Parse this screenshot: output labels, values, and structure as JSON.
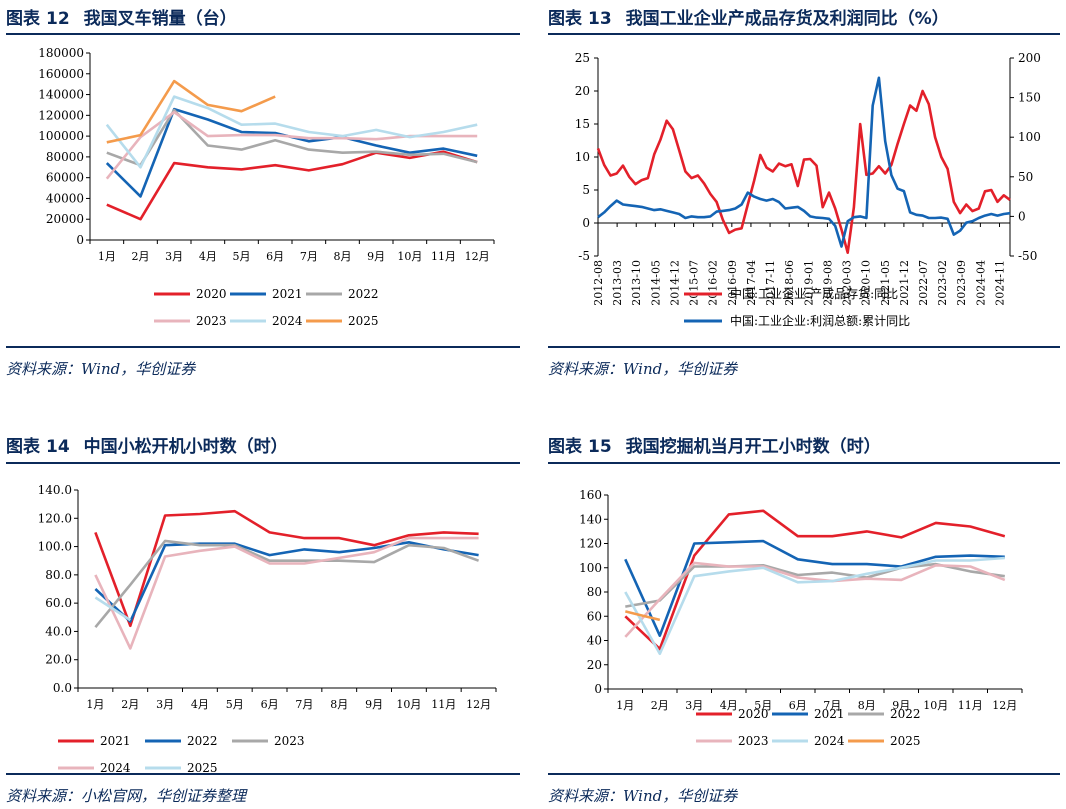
{
  "panels": [
    {
      "title_prefix": "图表",
      "title_number": "12",
      "title": "我国叉车销量（台）",
      "source": "资料来源：Wind，华创证券"
    },
    {
      "title_prefix": "图表",
      "title_number": "13",
      "title": "我国工业企业产成品存货及利润同比（%）",
      "source": "资料来源：Wind，华创证券"
    },
    {
      "title_prefix": "图表",
      "title_number": "14",
      "title": "中国小松开机小时数（时）",
      "source": "资料来源：小松官网，华创证券整理"
    },
    {
      "title_prefix": "图表",
      "title_number": "15",
      "title": "我国挖掘机当月开工小时数（时）",
      "source": "资料来源：Wind，华创证券"
    }
  ],
  "chart_data": [
    {
      "type": "line",
      "categories": [
        "1月",
        "2月",
        "3月",
        "4月",
        "5月",
        "6月",
        "7月",
        "8月",
        "9月",
        "10月",
        "11月",
        "12月"
      ],
      "ylim": [
        0,
        180000
      ],
      "yticks": [
        "0",
        "20000",
        "40000",
        "60000",
        "80000",
        "100000",
        "120000",
        "140000",
        "160000",
        "180000"
      ],
      "series": [
        {
          "name": "2020",
          "color": "#e3202a",
          "values": [
            34000,
            20000,
            74000,
            70000,
            68000,
            72000,
            67000,
            73000,
            84000,
            79000,
            85000,
            75000
          ]
        },
        {
          "name": "2021",
          "color": "#1464b4",
          "values": [
            74000,
            42000,
            126000,
            116000,
            104000,
            103000,
            95000,
            99000,
            91000,
            84000,
            88000,
            81000
          ]
        },
        {
          "name": "2022",
          "color": "#a8a8a8",
          "values": [
            84000,
            72000,
            125000,
            91000,
            87000,
            96000,
            87000,
            84000,
            85000,
            82000,
            83000,
            75000
          ]
        },
        {
          "name": "2023",
          "color": "#e8b4bc",
          "values": [
            59000,
            99000,
            123000,
            100000,
            101000,
            101000,
            98000,
            98000,
            97000,
            100000,
            100000,
            100000
          ]
        },
        {
          "name": "2024",
          "color": "#b6dcec",
          "values": [
            111000,
            70000,
            138000,
            127000,
            111000,
            112000,
            104000,
            100000,
            106000,
            99000,
            104000,
            111000
          ]
        },
        {
          "name": "2025",
          "color": "#f49b4c",
          "values": [
            94000,
            101000,
            153000,
            130000,
            124000,
            138000,
            null,
            null,
            null,
            null,
            null,
            null
          ]
        }
      ]
    },
    {
      "type": "line",
      "xticks": [
        "2012-08",
        "2013-03",
        "2013-10",
        "2014-05",
        "2014-12",
        "2015-07",
        "2016-02",
        "2016-09",
        "2017-04",
        "2017-11",
        "2018-06",
        "2019-01",
        "2019-08",
        "2020-03",
        "2020-10",
        "2021-05",
        "2021-12",
        "2022-07",
        "2023-02",
        "2023-09",
        "2024-04",
        "2024-11"
      ],
      "ylim_left": [
        -5,
        25
      ],
      "yticks_left": [
        "-5",
        "0",
        "5",
        "10",
        "15",
        "20",
        "25"
      ],
      "ylim_right": [
        -50,
        200
      ],
      "yticks_right": [
        "-50",
        "0",
        "50",
        "100",
        "150",
        "200"
      ],
      "series": [
        {
          "name": "中国:工业企业:产成品存货:同比",
          "axis": "left",
          "color": "#e3202a",
          "values": [
            11.3,
            8.8,
            7.2,
            7.5,
            8.7,
            7.0,
            5.9,
            6.5,
            6.8,
            10.4,
            12.6,
            15.5,
            14.2,
            11.0,
            7.8,
            6.8,
            7.2,
            6.0,
            4.4,
            3.2,
            0.5,
            -1.5,
            -1.0,
            -0.8,
            2.8,
            6.4,
            10.3,
            8.4,
            7.8,
            9.0,
            8.6,
            8.9,
            5.6,
            9.6,
            9.7,
            8.7,
            2.4,
            4.6,
            2.2,
            -1.0,
            -4.5,
            2.4,
            15.0,
            7.3,
            7.5,
            8.6,
            7.5,
            8.8,
            12.0,
            15.0,
            17.8,
            17.0,
            20.0,
            18.0,
            13.0,
            10.0,
            8.2,
            3.2,
            1.5,
            2.8,
            1.8,
            2.2,
            4.8,
            5.0,
            3.2,
            4.2,
            3.5
          ]
        },
        {
          "name": "中国:工业企业:利润总额:累计同比",
          "axis": "right",
          "color": "#1464b4",
          "values": [
            -1.0,
            5.0,
            13.0,
            20.0,
            15.0,
            14.0,
            13.0,
            12.0,
            10.0,
            8.0,
            9.0,
            7.0,
            5.0,
            3.0,
            -2.0,
            0.0,
            -1.0,
            -1.0,
            0.0,
            6.0,
            7.0,
            8.0,
            10.0,
            15.0,
            30.0,
            25.0,
            22.0,
            20.0,
            22.0,
            18.0,
            10.0,
            11.0,
            12.0,
            7.0,
            0.0,
            -1.5,
            -2.0,
            -3.0,
            -12.0,
            -38.0,
            -6.0,
            -1.0,
            0.0,
            -2.0,
            140.0,
            175.0,
            95.0,
            52.0,
            35.0,
            32.0,
            5.0,
            2.0,
            1.0,
            -2.0,
            -2.0,
            -1.5,
            -3.0,
            -23.0,
            -18.0,
            -8.0,
            -6.0,
            -2.0,
            1.0,
            3.0,
            1.0,
            3.0,
            4.0
          ]
        }
      ]
    },
    {
      "type": "line",
      "categories": [
        "1月",
        "2月",
        "3月",
        "4月",
        "5月",
        "6月",
        "7月",
        "8月",
        "9月",
        "10月",
        "11月",
        "12月"
      ],
      "ylim": [
        0,
        140
      ],
      "yticks": [
        "0.0",
        "20.0",
        "40.0",
        "60.0",
        "80.0",
        "100.0",
        "120.0",
        "140.0"
      ],
      "series": [
        {
          "name": "2021",
          "color": "#e3202a",
          "values": [
            110,
            44,
            122,
            123,
            125,
            110,
            106,
            106,
            101,
            108,
            110,
            109
          ]
        },
        {
          "name": "2022",
          "color": "#1464b4",
          "values": [
            70,
            47,
            101,
            102,
            102,
            94,
            98,
            96,
            99,
            103,
            98,
            94
          ]
        },
        {
          "name": "2023",
          "color": "#a8a8a8",
          "values": [
            43,
            73,
            104,
            101,
            101,
            90,
            90,
            90,
            89,
            101,
            99,
            90
          ]
        },
        {
          "name": "2024",
          "color": "#e8b4bc",
          "values": [
            80,
            28,
            93,
            97,
            100,
            88,
            88,
            92,
            96,
            106,
            106,
            106
          ]
        },
        {
          "name": "2025",
          "color": "#b6dcec",
          "values": [
            64,
            48,
            null,
            null,
            null,
            null,
            null,
            null,
            null,
            null,
            null,
            null
          ]
        }
      ]
    },
    {
      "type": "line",
      "categories": [
        "1月",
        "2月",
        "3月",
        "4月",
        "5月",
        "6月",
        "7月",
        "8月",
        "9月",
        "10月",
        "11月",
        "12月"
      ],
      "ylim": [
        0,
        160
      ],
      "yticks": [
        "0",
        "20",
        "40",
        "60",
        "80",
        "100",
        "120",
        "140",
        "160"
      ],
      "series": [
        {
          "name": "2020",
          "color": "#e3202a",
          "values": [
            60,
            33,
            110,
            144,
            147,
            126,
            126,
            130,
            125,
            137,
            134,
            126
          ]
        },
        {
          "name": "2021",
          "color": "#1464b4",
          "values": [
            107,
            44,
            120,
            121,
            122,
            107,
            103,
            103,
            101,
            109,
            110,
            109
          ]
        },
        {
          "name": "2022",
          "color": "#a8a8a8",
          "values": [
            68,
            73,
            101,
            101,
            102,
            94,
            96,
            92,
            100,
            103,
            97,
            93
          ]
        },
        {
          "name": "2023",
          "color": "#e8b4bc",
          "values": [
            43,
            74,
            104,
            101,
            101,
            92,
            89,
            91,
            90,
            102,
            101,
            90
          ]
        },
        {
          "name": "2024",
          "color": "#b6dcec",
          "values": [
            80,
            29,
            93,
            97,
            100,
            88,
            89,
            95,
            100,
            106,
            106,
            108
          ]
        },
        {
          "name": "2025",
          "color": "#f49b4c",
          "values": [
            64,
            57,
            null,
            null,
            null,
            null,
            null,
            null,
            null,
            null,
            null,
            null
          ]
        }
      ]
    }
  ]
}
